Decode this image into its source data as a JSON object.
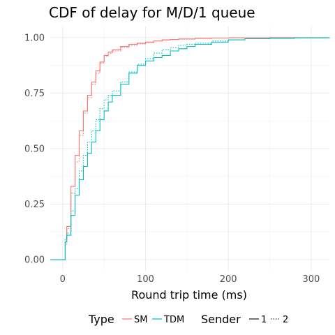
{
  "chart_data": {
    "type": "line",
    "title": "CDF of delay for M/D/1 queue",
    "xlabel": "Round trip time (ms)",
    "ylabel": "",
    "xlim": [
      -15,
      322
    ],
    "ylim": [
      -0.05,
      1.05
    ],
    "x_ticks": [
      0,
      100,
      200,
      300
    ],
    "y_ticks": [
      0.0,
      0.25,
      0.5,
      0.75,
      1.0
    ],
    "x_tick_labels": [
      "0",
      "100",
      "200",
      "300"
    ],
    "y_tick_labels": [
      "0.00",
      "0.25",
      "0.50",
      "0.75",
      "1.00"
    ],
    "grid": true,
    "legend": {
      "position": "bottom",
      "type_title": "Type",
      "sender_title": "Sender",
      "type_entries": [
        {
          "label": "SM",
          "color": "#F8766D"
        },
        {
          "label": "TDM",
          "color": "#00BFC4"
        }
      ],
      "sender_entries": [
        {
          "label": "1",
          "linestyle": "solid"
        },
        {
          "label": "2",
          "linestyle": "dotted"
        }
      ]
    },
    "series": [
      {
        "name": "SM-1",
        "type": "SM",
        "sender": "1",
        "color": "#F8766D",
        "linestyle": "solid",
        "x": [
          -15,
          2,
          3,
          5,
          10,
          15,
          20,
          25,
          30,
          35,
          40,
          45,
          50,
          55,
          60,
          70,
          80,
          90,
          100,
          110,
          120,
          130,
          140,
          160,
          180,
          200,
          250,
          322
        ],
        "y": [
          0,
          0,
          0.08,
          0.15,
          0.33,
          0.47,
          0.58,
          0.67,
          0.74,
          0.8,
          0.85,
          0.89,
          0.92,
          0.935,
          0.945,
          0.96,
          0.97,
          0.975,
          0.98,
          0.985,
          0.99,
          0.992,
          0.994,
          0.997,
          0.998,
          0.999,
          1.0,
          1.0
        ]
      },
      {
        "name": "SM-2",
        "type": "SM",
        "sender": "2",
        "color": "#F8766D",
        "linestyle": "dotted",
        "x": [
          -15,
          2,
          3,
          5,
          10,
          15,
          20,
          25,
          30,
          35,
          40,
          45,
          50,
          55,
          60,
          70,
          80,
          90,
          100,
          110,
          120,
          130,
          140,
          160,
          180,
          200,
          250,
          322
        ],
        "y": [
          0,
          0,
          0.07,
          0.14,
          0.3,
          0.44,
          0.56,
          0.66,
          0.73,
          0.79,
          0.84,
          0.885,
          0.915,
          0.93,
          0.94,
          0.955,
          0.965,
          0.972,
          0.978,
          0.984,
          0.988,
          0.991,
          0.993,
          0.996,
          0.998,
          0.999,
          1.0,
          1.0
        ]
      },
      {
        "name": "TDM-1",
        "type": "TDM",
        "sender": "1",
        "color": "#00BFC4",
        "linestyle": "solid",
        "x": [
          -15,
          2,
          3,
          5,
          10,
          15,
          20,
          25,
          30,
          35,
          40,
          45,
          50,
          55,
          60,
          70,
          80,
          90,
          100,
          110,
          120,
          130,
          140,
          150,
          160,
          180,
          200,
          220,
          250,
          280,
          322
        ],
        "y": [
          0,
          0,
          0.08,
          0.11,
          0.2,
          0.29,
          0.36,
          0.42,
          0.48,
          0.53,
          0.58,
          0.63,
          0.67,
          0.71,
          0.74,
          0.79,
          0.84,
          0.875,
          0.895,
          0.91,
          0.92,
          0.94,
          0.95,
          0.96,
          0.97,
          0.98,
          0.99,
          0.995,
          0.997,
          0.999,
          1.0
        ]
      },
      {
        "name": "TDM-2",
        "type": "TDM",
        "sender": "2",
        "color": "#00BFC4",
        "linestyle": "dotted",
        "x": [
          -15,
          2,
          3,
          5,
          10,
          15,
          20,
          25,
          30,
          35,
          40,
          45,
          50,
          55,
          60,
          70,
          80,
          90,
          100,
          110,
          120,
          130,
          140,
          150,
          160,
          180,
          200,
          220,
          250,
          280,
          322
        ],
        "y": [
          0,
          0,
          0.09,
          0.12,
          0.22,
          0.32,
          0.4,
          0.47,
          0.53,
          0.58,
          0.63,
          0.68,
          0.72,
          0.74,
          0.76,
          0.8,
          0.845,
          0.88,
          0.905,
          0.93,
          0.945,
          0.955,
          0.965,
          0.97,
          0.975,
          0.985,
          0.99,
          0.995,
          0.997,
          0.999,
          1.0
        ]
      }
    ]
  }
}
